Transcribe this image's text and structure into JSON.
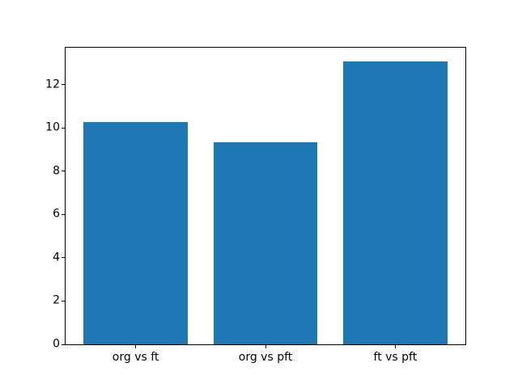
{
  "figure": {
    "background_color": "#ffffff",
    "spine_color": "#000000",
    "tick_label_color": "#000000"
  },
  "chart_data": {
    "type": "bar",
    "title": "",
    "xlabel": "",
    "ylabel": "",
    "categories": [
      "org vs ft",
      "org vs pft",
      "ft vs pft"
    ],
    "values": [
      10.25,
      9.35,
      13.05
    ],
    "bar_color": "#1f77b4",
    "bar_width": 0.8,
    "xlim": [
      -0.54,
      2.54
    ],
    "ylim": [
      0,
      13.7
    ],
    "yticks": [
      0,
      2,
      4,
      6,
      8,
      10,
      12
    ],
    "grid": false,
    "legend": "none"
  }
}
